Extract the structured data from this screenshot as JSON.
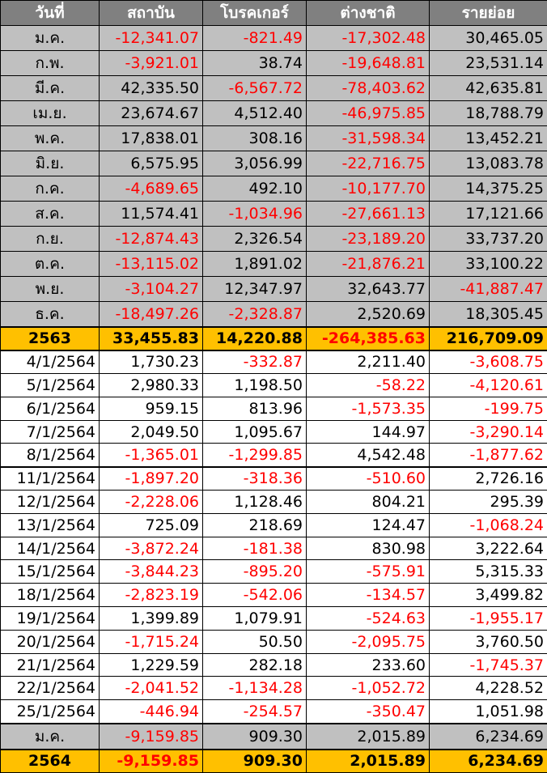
{
  "table": {
    "header": [
      "วันที่",
      "สถาบัน",
      "โบรคเกอร์",
      "ต่างชาติ",
      "รายย่อย"
    ],
    "sections": [
      {
        "fill": "#c0c0c0",
        "bold": false,
        "center_first": true,
        "rows": [
          [
            "ม.ค.",
            "-12,341.07",
            "-821.49",
            "-17,302.48",
            "30,465.05"
          ],
          [
            "ก.พ.",
            "-3,921.01",
            "38.74",
            "-19,648.81",
            "23,531.14"
          ],
          [
            "มี.ค.",
            "42,335.50",
            "-6,567.72",
            "-78,403.62",
            "42,635.81"
          ],
          [
            "เม.ย.",
            "23,674.67",
            "4,512.40",
            "-46,975.85",
            "18,788.79"
          ],
          [
            "พ.ค.",
            "17,838.01",
            "308.16",
            "-31,598.34",
            "13,452.21"
          ],
          [
            "มิ.ย.",
            "6,575.95",
            "3,056.99",
            "-22,716.75",
            "13,083.78"
          ],
          [
            "ก.ค.",
            "-4,689.65",
            "492.10",
            "-10,177.70",
            "14,375.25"
          ],
          [
            "ส.ค.",
            "11,574.41",
            "-1,034.96",
            "-27,661.13",
            "17,121.66"
          ],
          [
            "ก.ย.",
            "-12,874.43",
            "2,326.54",
            "-23,189.20",
            "33,737.20"
          ],
          [
            "ต.ค.",
            "-13,115.02",
            "1,891.02",
            "-21,876.21",
            "33,100.22"
          ],
          [
            "พ.ย.",
            "-3,104.27",
            "12,347.97",
            "32,643.77",
            "-41,887.47"
          ],
          [
            "ธ.ค.",
            "-18,497.26",
            "-2,328.87",
            "2,520.69",
            "18,305.45"
          ]
        ]
      },
      {
        "fill": "#ffc000",
        "bold": true,
        "center_first": true,
        "rows": [
          [
            "2563",
            "33,455.83",
            "14,220.88",
            "-264,385.63",
            "216,709.09"
          ]
        ]
      },
      {
        "fill": "#ffffff",
        "bold": false,
        "center_first": false,
        "rows": [
          [
            "4/1/2564",
            "1,730.23",
            "-332.87",
            "2,211.40",
            "-3,608.75"
          ],
          [
            "5/1/2564",
            "2,980.33",
            "1,198.50",
            "-58.22",
            "-4,120.61"
          ],
          [
            "6/1/2564",
            "959.15",
            "813.96",
            "-1,573.35",
            "-199.75"
          ],
          [
            "7/1/2564",
            "2,049.50",
            "1,095.67",
            "144.97",
            "-3,290.14"
          ],
          [
            "8/1/2564",
            "-1,365.01",
            "-1,299.85",
            "4,542.48",
            "-1,877.62"
          ]
        ]
      },
      {
        "fill": "#ffffff",
        "bold": false,
        "center_first": false,
        "rows": [
          [
            "11/1/2564",
            "-1,897.20",
            "-318.36",
            "-510.60",
            "2,726.16"
          ],
          [
            "12/1/2564",
            "-2,228.06",
            "1,128.46",
            "804.21",
            "295.39"
          ],
          [
            "13/1/2564",
            "725.09",
            "218.69",
            "124.47",
            "-1,068.24"
          ],
          [
            "14/1/2564",
            "-3,872.24",
            "-181.38",
            "830.98",
            "3,222.64"
          ],
          [
            "15/1/2564",
            "-3,844.23",
            "-895.20",
            "-575.91",
            "5,315.33"
          ],
          [
            "18/1/2564",
            "-2,823.19",
            "-542.06",
            "-134.57",
            "3,499.82"
          ],
          [
            "19/1/2564",
            "1,399.89",
            "1,079.91",
            "-524.63",
            "-1,955.17"
          ],
          [
            "20/1/2564",
            "-1,715.24",
            "50.50",
            "-2,095.75",
            "3,760.50"
          ],
          [
            "21/1/2564",
            "1,229.59",
            "282.18",
            "233.60",
            "-1,745.37"
          ],
          [
            "22/1/2564",
            "-2,041.52",
            "-1,134.28",
            "-1,052.72",
            "4,228.52"
          ],
          [
            "25/1/2564",
            "-446.94",
            "-254.57",
            "-350.47",
            "1,051.98"
          ]
        ]
      },
      {
        "fill": "#c0c0c0",
        "bold": false,
        "center_first": true,
        "rows": [
          [
            "ม.ค.",
            "-9,159.85",
            "909.30",
            "2,015.89",
            "6,234.69"
          ]
        ]
      },
      {
        "fill": "#ffc000",
        "bold": true,
        "center_first": true,
        "rows": [
          [
            "2564",
            "-9,159.85",
            "909.30",
            "2,015.89",
            "6,234.69"
          ]
        ]
      }
    ]
  }
}
